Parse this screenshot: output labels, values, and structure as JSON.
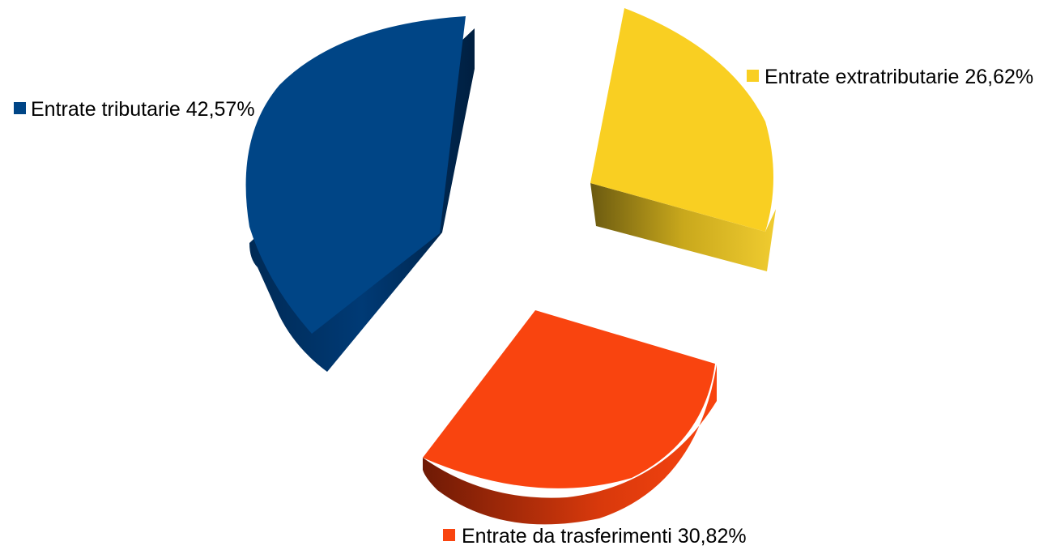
{
  "chart_data": {
    "type": "pie",
    "title": "",
    "style": "3d-exploded",
    "categories": [
      "Entrate tributarie",
      "Entrate extratributarie",
      "Entrate da trasferimenti"
    ],
    "values": [
      42.57,
      26.62,
      30.82
    ],
    "unit": "%",
    "data_labels": [
      "Entrate tributarie 42,57%",
      "Entrate extratributarie 26,62%",
      "Entrate da trasferimenti 30,82%"
    ],
    "colors": [
      "#004586",
      "#f9cf22",
      "#f9440f"
    ],
    "legend": "none"
  }
}
